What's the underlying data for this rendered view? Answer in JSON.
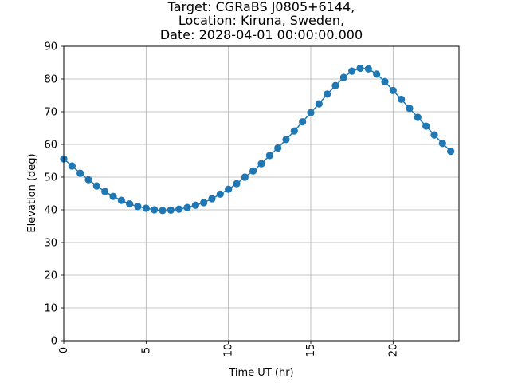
{
  "chart_data": {
    "type": "line",
    "title_lines": [
      "Target: CGRaBS J0805+6144,",
      "Location: Kiruna, Sweden,",
      "Date: 2028-04-01 00:00:00.000"
    ],
    "xlabel": "Time UT (hr)",
    "ylabel": "Elevation (deg)",
    "xlim": [
      0,
      24
    ],
    "ylim": [
      0,
      90
    ],
    "xticks": [
      0,
      5,
      10,
      15,
      20
    ],
    "yticks": [
      0,
      10,
      20,
      30,
      40,
      50,
      60,
      70,
      80,
      90
    ],
    "grid": true,
    "marker": "circle",
    "colors": {
      "series": "#1f77b4",
      "grid": "#b0b0b0",
      "axes": "#000000"
    },
    "series": [
      {
        "x": [
          0,
          0.5,
          1,
          1.5,
          2,
          2.5,
          3,
          3.5,
          4,
          4.5,
          5,
          5.5,
          6,
          6.5,
          7,
          7.5,
          8,
          8.5,
          9,
          9.5,
          10,
          10.5,
          11,
          11.5,
          12,
          12.5,
          13,
          13.5,
          14,
          14.5,
          15,
          15.5,
          16,
          16.5,
          17,
          17.5,
          18,
          18.5,
          19,
          19.5,
          20,
          20.5,
          21,
          21.5,
          22,
          22.5,
          23,
          23.5
        ],
        "y": [
          55.6,
          53.4,
          51.2,
          49.2,
          47.3,
          45.6,
          44.1,
          42.9,
          41.8,
          41.0,
          40.5,
          40.0,
          39.8,
          39.9,
          40.2,
          40.7,
          41.4,
          42.2,
          43.4,
          44.8,
          46.3,
          48.0,
          50.0,
          51.9,
          54.1,
          56.6,
          58.9,
          61.5,
          64.1,
          66.9,
          69.7,
          72.4,
          75.4,
          78.0,
          80.5,
          82.4,
          83.3,
          83.1,
          81.5,
          79.2,
          76.5,
          73.8,
          71.0,
          68.3,
          65.6,
          62.9,
          60.3,
          57.9
        ]
      }
    ]
  }
}
